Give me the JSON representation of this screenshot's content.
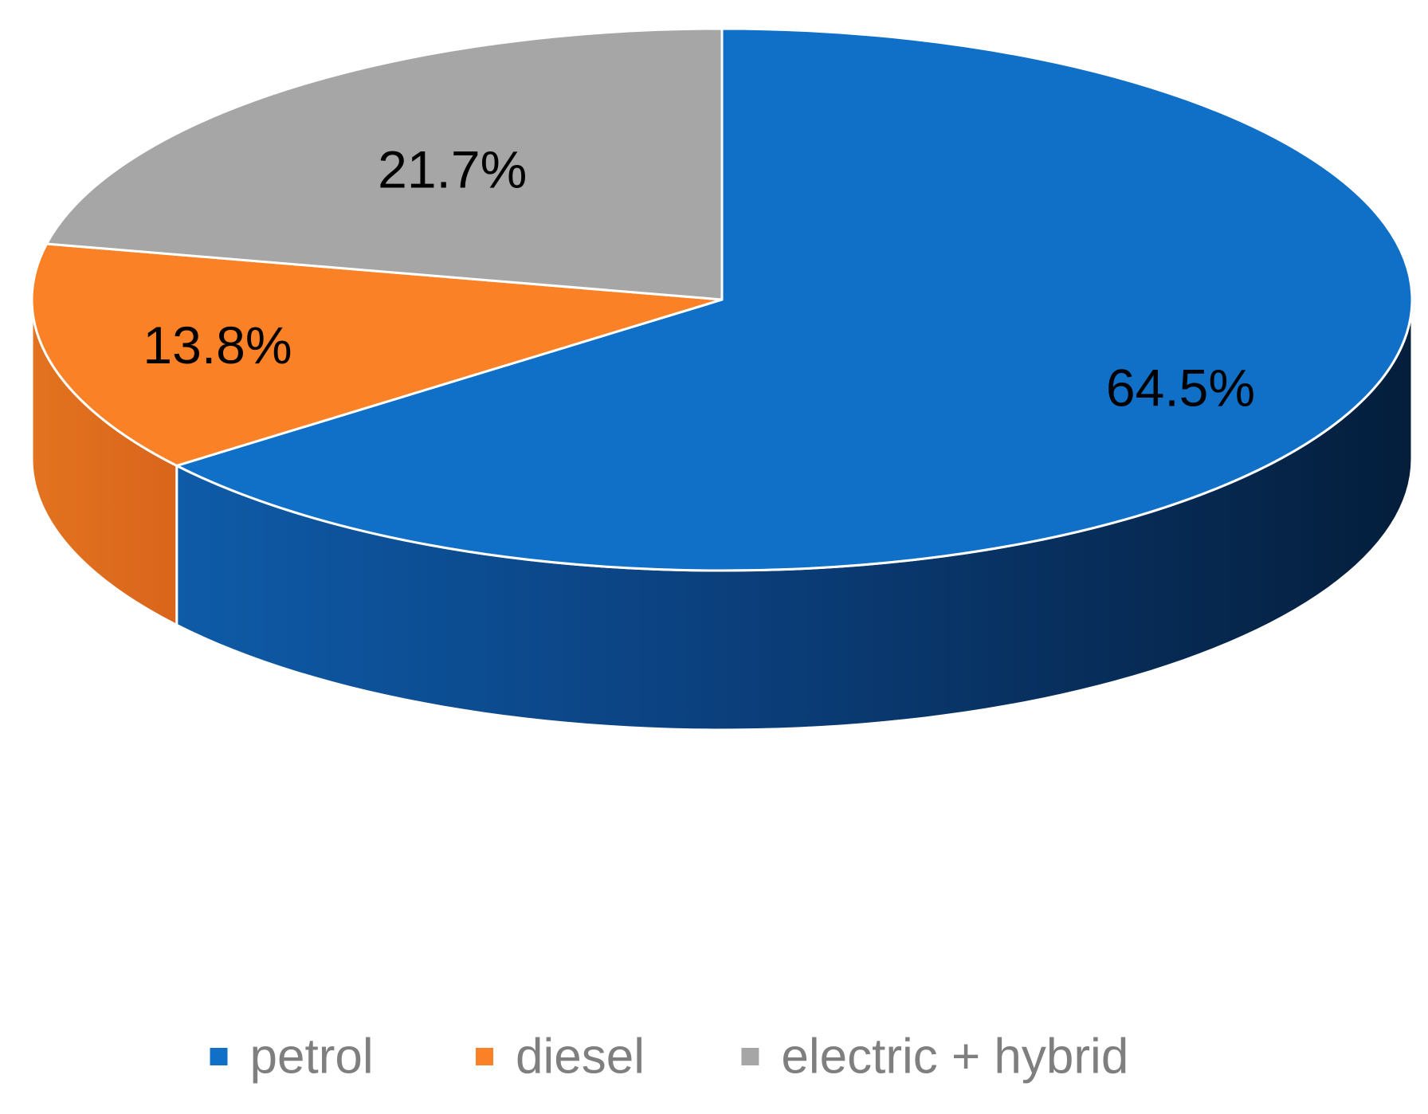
{
  "chart_data": {
    "type": "pie",
    "style": "3d",
    "title": "",
    "slices": [
      {
        "name": "petrol",
        "value": 64.5,
        "label": "64.5%",
        "color": "#1070C8",
        "side_color": "#0E4E96"
      },
      {
        "name": "diesel",
        "value": 13.8,
        "label": "13.8%",
        "color": "#FB8126",
        "side_color": "#DA6A1F"
      },
      {
        "name": "electric + hybrid",
        "value": 21.7,
        "label": "21.7%",
        "color": "#A6A6A6",
        "side_color": "#7F7F7F"
      }
    ],
    "legend": {
      "position": "bottom",
      "items": [
        "petrol",
        "diesel",
        "electric + hybrid"
      ]
    }
  }
}
